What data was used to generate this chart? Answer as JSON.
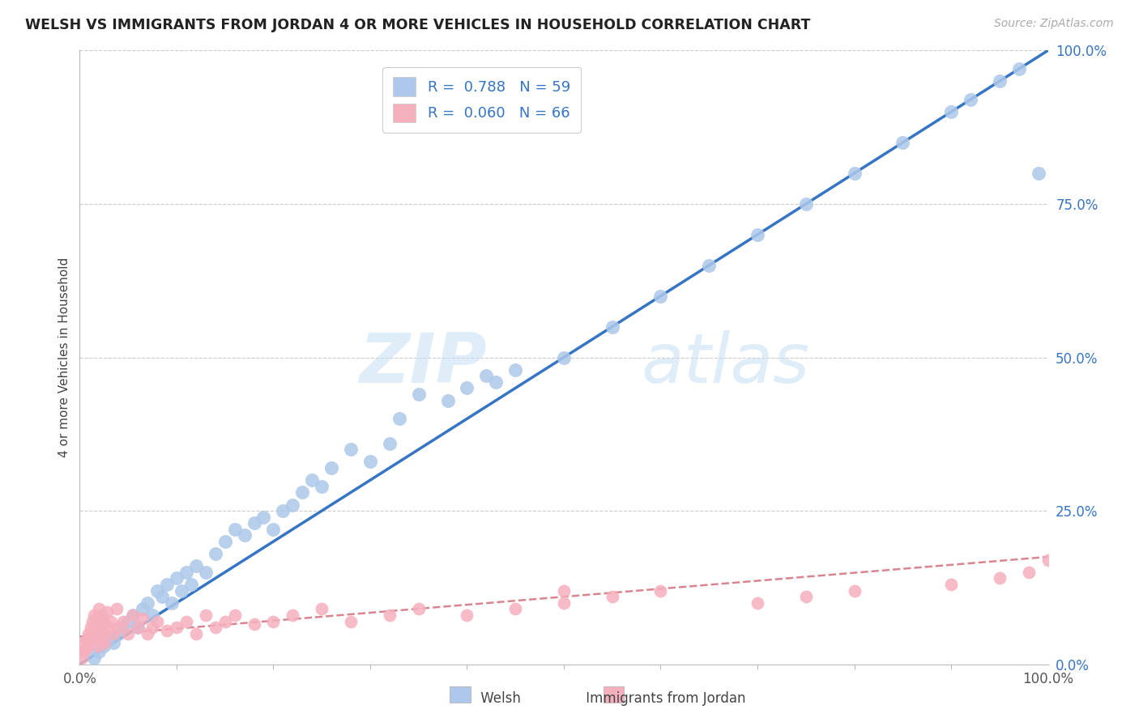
{
  "title": "WELSH VS IMMIGRANTS FROM JORDAN 4 OR MORE VEHICLES IN HOUSEHOLD CORRELATION CHART",
  "source": "Source: ZipAtlas.com",
  "ylabel": "4 or more Vehicles in Household",
  "ytick_labels": [
    "0.0%",
    "25.0%",
    "50.0%",
    "75.0%",
    "100.0%"
  ],
  "ytick_values": [
    0,
    25,
    50,
    75,
    100
  ],
  "xtick_left": "0.0%",
  "xtick_right": "100.0%",
  "xlim": [
    0,
    100
  ],
  "ylim": [
    0,
    100
  ],
  "watermark_zip": "ZIP",
  "watermark_atlas": "atlas",
  "legend_welsh_R": "R =  0.788",
  "legend_welsh_N": "N = 59",
  "legend_jordan_R": "R =  0.060",
  "legend_jordan_N": "N = 66",
  "welsh_color": "#adc8ea",
  "jordan_color": "#f5b0be",
  "welsh_line_color": "#3575c3",
  "jordan_line_color": "#d8858f",
  "legend_text_color": "#3575c3",
  "background_color": "#ffffff",
  "grid_color": "#cccccc",
  "title_color": "#222222",
  "source_color": "#aaaaaa",
  "ytick_color": "#3575c3",
  "xtick_color": "#555555",
  "ylabel_color": "#444444",
  "welsh_x": [
    1.5,
    2.0,
    2.5,
    3.0,
    3.5,
    4.0,
    4.5,
    5.0,
    5.5,
    6.0,
    6.5,
    7.0,
    7.5,
    8.0,
    8.5,
    9.0,
    9.5,
    10.0,
    10.5,
    11.0,
    11.5,
    12.0,
    13.0,
    14.0,
    15.0,
    16.0,
    17.0,
    18.0,
    19.0,
    20.0,
    21.0,
    22.0,
    23.0,
    24.0,
    25.0,
    26.0,
    28.0,
    30.0,
    32.0,
    33.0,
    35.0,
    38.0,
    40.0,
    42.0,
    43.0,
    45.0,
    50.0,
    55.0,
    60.0,
    65.0,
    70.0,
    75.0,
    80.0,
    85.0,
    90.0,
    92.0,
    95.0,
    97.0,
    99.0
  ],
  "welsh_y": [
    1.0,
    2.0,
    3.0,
    4.0,
    3.5,
    5.0,
    6.0,
    7.0,
    8.0,
    6.0,
    9.0,
    10.0,
    8.0,
    12.0,
    11.0,
    13.0,
    10.0,
    14.0,
    12.0,
    15.0,
    13.0,
    16.0,
    15.0,
    18.0,
    20.0,
    22.0,
    21.0,
    23.0,
    24.0,
    22.0,
    25.0,
    26.0,
    28.0,
    30.0,
    29.0,
    32.0,
    35.0,
    33.0,
    36.0,
    40.0,
    44.0,
    43.0,
    45.0,
    47.0,
    46.0,
    48.0,
    50.0,
    55.0,
    60.0,
    65.0,
    70.0,
    75.0,
    80.0,
    85.0,
    90.0,
    92.0,
    95.0,
    97.0,
    80.0
  ],
  "jordan_x": [
    0.2,
    0.4,
    0.5,
    0.6,
    0.7,
    0.8,
    0.9,
    1.0,
    1.1,
    1.2,
    1.3,
    1.4,
    1.5,
    1.6,
    1.7,
    1.8,
    1.9,
    2.0,
    2.1,
    2.2,
    2.3,
    2.4,
    2.5,
    2.6,
    2.8,
    3.0,
    3.2,
    3.5,
    3.8,
    4.0,
    4.5,
    5.0,
    5.5,
    6.0,
    6.5,
    7.0,
    7.5,
    8.0,
    9.0,
    10.0,
    11.0,
    12.0,
    13.0,
    14.0,
    15.0,
    16.0,
    18.0,
    20.0,
    22.0,
    25.0,
    28.0,
    32.0,
    35.0,
    40.0,
    45.0,
    50.0,
    55.0,
    60.0,
    70.0,
    75.0,
    80.0,
    90.0,
    95.0,
    98.0,
    100.0,
    50.0
  ],
  "jordan_y": [
    1.0,
    2.0,
    3.5,
    2.5,
    4.0,
    3.0,
    5.0,
    4.5,
    6.0,
    5.0,
    7.0,
    4.0,
    8.0,
    5.5,
    6.5,
    7.5,
    3.0,
    9.0,
    4.0,
    6.0,
    8.0,
    5.0,
    7.0,
    3.5,
    8.5,
    6.0,
    7.0,
    5.0,
    9.0,
    6.0,
    7.0,
    5.0,
    8.0,
    6.0,
    7.5,
    5.0,
    6.0,
    7.0,
    5.5,
    6.0,
    7.0,
    5.0,
    8.0,
    6.0,
    7.0,
    8.0,
    6.5,
    7.0,
    8.0,
    9.0,
    7.0,
    8.0,
    9.0,
    8.0,
    9.0,
    10.0,
    11.0,
    12.0,
    10.0,
    11.0,
    12.0,
    13.0,
    14.0,
    15.0,
    17.0,
    12.0
  ],
  "welsh_line_x": [
    0,
    100
  ],
  "welsh_line_y": [
    0,
    100
  ],
  "jordan_line_x": [
    0,
    100
  ],
  "jordan_line_y": [
    4.5,
    17.5
  ]
}
